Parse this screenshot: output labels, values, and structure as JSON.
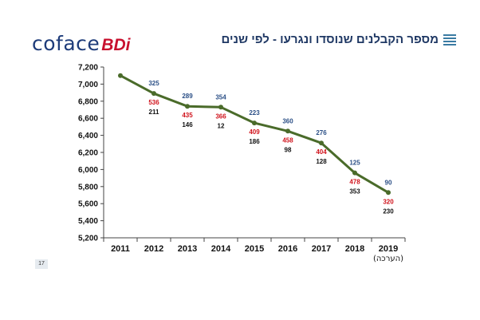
{
  "header": {
    "logo_text_main": "coface",
    "logo_text_sub": "BDi",
    "title": "מספר הקבלנים שנוסדו ונגרעו - לפי שנים"
  },
  "colors": {
    "line": "#4a6b2a",
    "blue_label": "#2b4f86",
    "red_label": "#d0121b",
    "black_label": "#111111",
    "title": "#1f3864",
    "logo_main": "#1e3c7a",
    "logo_sub": "#c8102e",
    "menu_icon": "#3a7ba3"
  },
  "icons": {
    "menu": "list-lines-icon"
  },
  "footer": {
    "page_number": "17"
  },
  "chart_data": {
    "type": "line",
    "categories": [
      "2011",
      "2012",
      "2013",
      "2014",
      "2015",
      "2016",
      "2017",
      "2018",
      "2019"
    ],
    "category_sublabels": [
      "",
      "",
      "",
      "",
      "",
      "",
      "",
      "",
      "(הערכה)"
    ],
    "series": [
      {
        "values": [
          7100,
          6890,
          6740,
          6730,
          6545,
          6450,
          6310,
          5960,
          5730
        ]
      }
    ],
    "annotations": {
      "blue": [
        "",
        "325",
        "289",
        "354",
        "223",
        "360",
        "276",
        "125",
        "90"
      ],
      "red": [
        "",
        "536",
        "435",
        "366",
        "409",
        "458",
        "404",
        "478",
        "320"
      ],
      "black": [
        "",
        "211",
        "146",
        "12",
        "186",
        "98",
        "128",
        "353",
        "230"
      ]
    },
    "y_ticks": [
      "5,200",
      "5,400",
      "5,600",
      "5,800",
      "6,000",
      "6,200",
      "6,400",
      "6,600",
      "6,800",
      "7,000",
      "7,200"
    ],
    "ylim": [
      5200,
      7200
    ],
    "y_step": 200,
    "grid": false
  }
}
